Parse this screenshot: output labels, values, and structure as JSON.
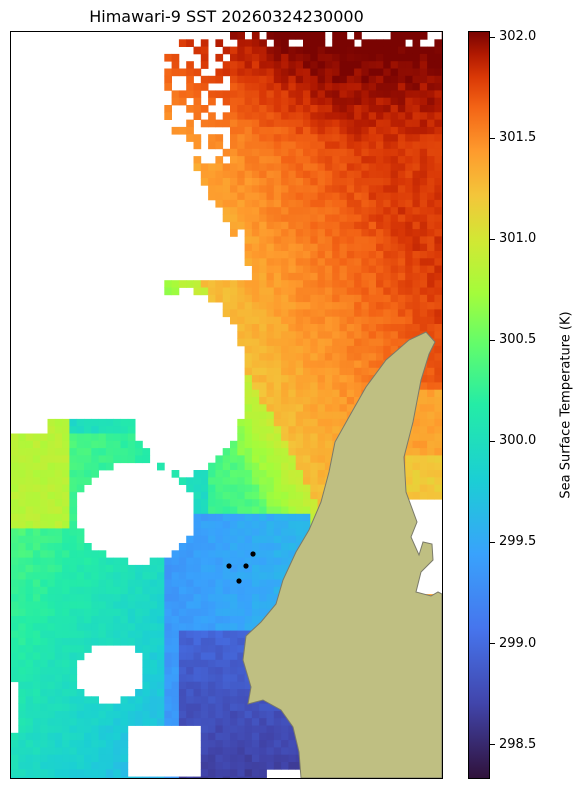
{
  "title": "Himawari-9 SST 20260324230000",
  "colorbar": {
    "label": "Sea Surface Temperature (K)",
    "range": [
      298.33,
      302.03
    ],
    "ticks": [
      "298.5",
      "299.0",
      "299.5",
      "300.0",
      "300.5",
      "301.0",
      "301.5",
      "302.0"
    ]
  },
  "colors": {
    "land": "#bfbf82",
    "land_edge": "#7a7a6a",
    "station": "#000000"
  },
  "chart_data": {
    "type": "heatmap",
    "title": "Himawari-9 SST 20260324230000",
    "colorbar_label": "Sea Surface Temperature (K)",
    "vmin": 298.33,
    "vmax": 302.03,
    "regions": [
      {
        "name": "north-east warm pool",
        "value": 301.6
      },
      {
        "name": "central band",
        "value": 300.6
      },
      {
        "name": "west coast",
        "value": 300.2
      },
      {
        "name": "south-west",
        "value": 299.9
      },
      {
        "name": "channel near coast",
        "value": 299.4
      },
      {
        "name": "south bay",
        "value": 298.9
      }
    ],
    "markers": 4
  }
}
